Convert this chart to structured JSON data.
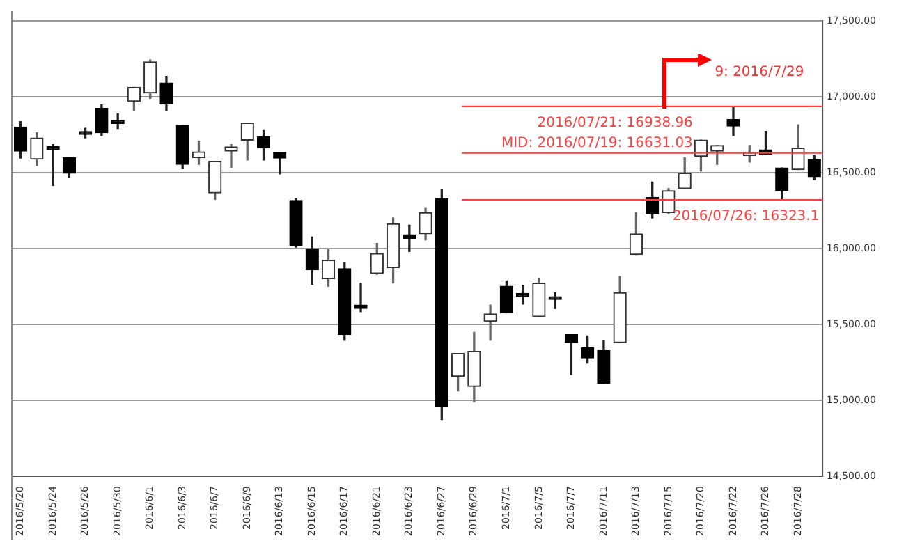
{
  "chart_data": {
    "type": "candlestick",
    "categories": [
      "2016/5/20",
      null,
      "2016/5/24",
      null,
      "2016/5/26",
      null,
      "2016/5/30",
      null,
      "2016/6/1",
      null,
      "2016/6/3",
      null,
      "2016/6/7",
      null,
      "2016/6/9",
      null,
      "2016/6/13",
      null,
      "2016/6/15",
      null,
      "2016/6/17",
      null,
      "2016/6/21",
      null,
      "2016/6/23",
      null,
      "2016/6/27",
      null,
      "2016/6/29",
      null,
      "2016/7/1",
      null,
      "2016/7/5",
      null,
      "2016/7/7",
      null,
      "2016/7/11",
      null,
      "2016/7/13",
      null,
      "2016/7/15",
      null,
      "2016/7/20",
      null,
      "2016/7/22",
      null,
      "2016/7/26",
      null,
      "2016/7/28",
      null
    ],
    "ohlc": [
      [
        16803,
        16838,
        16597,
        16643
      ],
      [
        16591,
        16765,
        16548,
        16730
      ],
      [
        16672,
        16687,
        16417,
        16655
      ],
      [
        16600,
        16600,
        16470,
        16498
      ],
      [
        16765,
        16794,
        16730,
        16754
      ],
      [
        16925,
        16948,
        16745,
        16765
      ],
      [
        16835,
        16890,
        16788,
        16826
      ],
      [
        16971,
        17064,
        16910,
        17064
      ],
      [
        17026,
        17244,
        16991,
        17232
      ],
      [
        17093,
        17136,
        16910,
        16954
      ],
      [
        16814,
        16814,
        16527,
        16556
      ],
      [
        16600,
        16710,
        16556,
        16638
      ],
      [
        16368,
        16577,
        16325,
        16577
      ],
      [
        16643,
        16687,
        16536,
        16672
      ],
      [
        16716,
        16829,
        16585,
        16829
      ],
      [
        16739,
        16780,
        16585,
        16664
      ],
      [
        16635,
        16635,
        16493,
        16597
      ],
      [
        16319,
        16330,
        16010,
        16020
      ],
      [
        16000,
        16078,
        15765,
        15861
      ],
      [
        15803,
        15997,
        15753,
        15925
      ],
      [
        15869,
        15910,
        15397,
        15434
      ],
      [
        15629,
        15774,
        15585,
        15606
      ],
      [
        15837,
        16035,
        15831,
        15968
      ],
      [
        15875,
        16203,
        15774,
        16165
      ],
      [
        16093,
        16156,
        15982,
        16069
      ],
      [
        16098,
        16267,
        16058,
        16238
      ],
      [
        16330,
        16388,
        14875,
        14962
      ],
      [
        15159,
        15310,
        15063,
        15310
      ],
      [
        15092,
        15449,
        14991,
        15324
      ],
      [
        15522,
        15629,
        15397,
        15571
      ],
      [
        15753,
        15788,
        15577,
        15577
      ],
      [
        15701,
        15759,
        15635,
        15687
      ],
      [
        15553,
        15803,
        15553,
        15774
      ],
      [
        15681,
        15710,
        15606,
        15666
      ],
      [
        15434,
        15434,
        15171,
        15382
      ],
      [
        15348,
        15426,
        15246,
        15281
      ],
      [
        15330,
        15397,
        15113,
        15113
      ],
      [
        15382,
        15817,
        15382,
        15710
      ],
      [
        15962,
        16238,
        15962,
        16098
      ],
      [
        16339,
        16440,
        16203,
        16232
      ],
      [
        16238,
        16397,
        16232,
        16383
      ],
      [
        16397,
        16600,
        16397,
        16498
      ],
      [
        16609,
        16716,
        16513,
        16716
      ],
      [
        16643,
        16681,
        16556,
        16681
      ],
      [
        16852,
        16939,
        16745,
        16809
      ],
      [
        16614,
        16681,
        16571,
        16629
      ],
      [
        16652,
        16774,
        16620,
        16620
      ],
      [
        16533,
        16533,
        16323,
        16383
      ],
      [
        16522,
        16817,
        16522,
        16664
      ],
      [
        16591,
        16614,
        16455,
        16475
      ]
    ],
    "ylim": [
      14500,
      17500
    ],
    "yticks": [
      {
        "value": 14500,
        "label": "14,500.00"
      },
      {
        "value": 15000,
        "label": "15,000.00"
      },
      {
        "value": 15500,
        "label": "15,500.00"
      },
      {
        "value": 16000,
        "label": "16,000.00"
      },
      {
        "value": 16500,
        "label": "16,500.00"
      },
      {
        "value": 17000,
        "label": "17,000.00"
      },
      {
        "value": 17500,
        "label": "17,500.00"
      }
    ],
    "grid": "y",
    "ref_lines": [
      {
        "axis": "y",
        "value": 16938.96,
        "label": "2016/07/21: 16938.96",
        "color": "#ff4040"
      },
      {
        "axis": "y",
        "value": 16631.03,
        "label": "MID: 2016/07/19: 16631.03",
        "color": "#ff4040"
      },
      {
        "axis": "y",
        "value": 16323.1,
        "label": "2016/07/26: 16323.1",
        "color": "#ff4040"
      }
    ],
    "annotations": [
      "9: 2016/7/29"
    ]
  }
}
